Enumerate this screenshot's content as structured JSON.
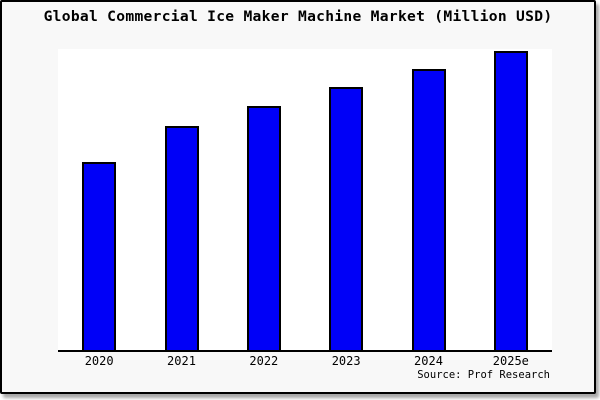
{
  "window": {
    "background_color": "#f8f8f8",
    "frame_border_color": "#000000",
    "plot_background_color": "#ffffff"
  },
  "chart": {
    "title": "Global Commercial Ice Maker Machine Market (Million USD)",
    "source": "Source: Prof Research",
    "bar_fill_color": "#0000f7",
    "bar_border_color": "#000000"
  },
  "chart_data": {
    "type": "bar",
    "title": "Global Commercial Ice Maker Machine Market (Million USD)",
    "categories": [
      "2020",
      "2021",
      "2022",
      "2023",
      "2024",
      "2025e"
    ],
    "values": [
      63,
      75,
      81.5,
      88,
      94,
      100
    ],
    "values_unit": "relative height, % of 2025e bar (no y-axis scale shown)",
    "xlabel": "",
    "ylabel": "",
    "ylim": [
      0,
      100
    ],
    "grid": false,
    "legend_position": "none",
    "annotations": [
      "Source: Prof Research"
    ]
  }
}
